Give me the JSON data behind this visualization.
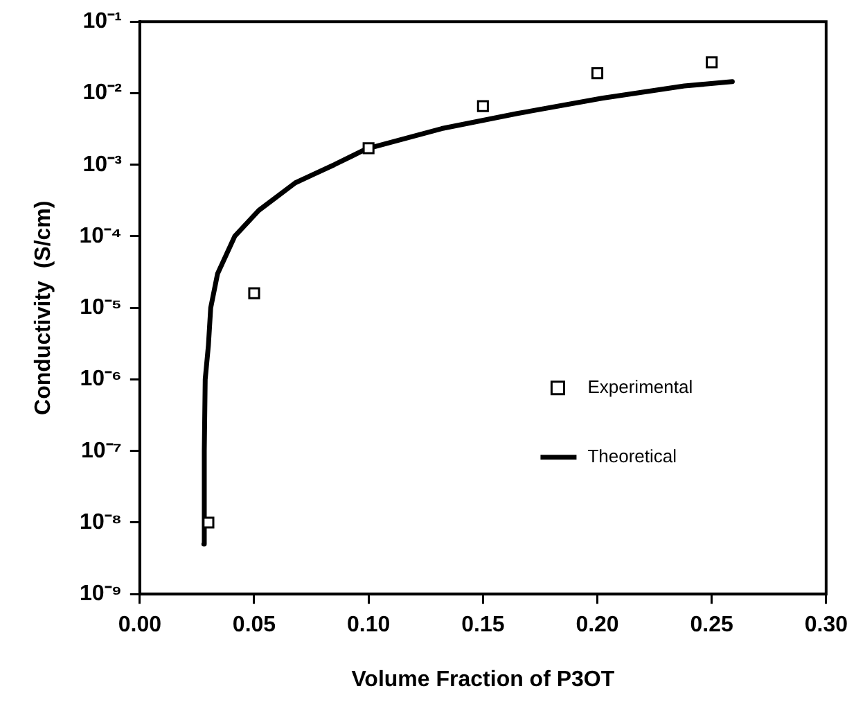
{
  "chart_data": {
    "type": "scatter",
    "xlabel": "Volume Fraction of P3OT",
    "ylabel": "Conductivity  (S/cm)",
    "log": "y",
    "grid": false,
    "legend": "right",
    "xlim": [
      0,
      0.3
    ],
    "xticks": [
      {
        "value": 0,
        "label": "0.00"
      },
      {
        "value": 0.05,
        "label": "0.05"
      },
      {
        "value": 0.1,
        "label": "0.10"
      },
      {
        "value": 0.15,
        "label": "0.15"
      },
      {
        "value": 0.2,
        "label": "0.20"
      },
      {
        "value": 0.25,
        "label": "0.25"
      },
      {
        "value": 0.3,
        "label": "0.30"
      }
    ],
    "ylim": [
      1e-09,
      0.1
    ],
    "yticks": [
      {
        "value": 1e-09,
        "label": "10⁻⁹"
      },
      {
        "value": 1e-08,
        "label": "10⁻⁸"
      },
      {
        "value": 1e-07,
        "label": "10⁻⁷"
      },
      {
        "value": 1e-06,
        "label": "10⁻⁶"
      },
      {
        "value": 1e-05,
        "label": "10⁻⁵"
      },
      {
        "value": 0.0001,
        "label": "10⁻⁴"
      },
      {
        "value": 0.001,
        "label": "10⁻³"
      },
      {
        "value": 0.01,
        "label": "10⁻²"
      },
      {
        "value": 0.1,
        "label": "10⁻¹"
      }
    ],
    "series": [
      {
        "name": "Experimental",
        "marker": "square",
        "color": "#000000",
        "x": [
          0.03,
          0.05,
          0.1,
          0.15,
          0.2,
          0.25
        ],
        "values": [
          1e-08,
          1.6e-05,
          0.0017,
          0.0066,
          0.019,
          0.027
        ]
      },
      {
        "name": "Theoretical",
        "type": "line",
        "marker": "none",
        "line_style": "solid",
        "color": "#000000",
        "x": [
          0.028,
          0.0282,
          0.0286,
          0.03,
          0.031,
          0.034,
          0.0415,
          0.052,
          0.068,
          0.085,
          0.099,
          0.132,
          0.165,
          0.202,
          0.238,
          0.259
        ],
        "values": [
          5e-09,
          1e-07,
          1e-06,
          3e-06,
          1e-05,
          3e-05,
          0.0001,
          0.00023,
          0.00056,
          0.001,
          0.00166,
          0.0032,
          0.0052,
          0.0085,
          0.0126,
          0.0145
        ]
      }
    ]
  }
}
